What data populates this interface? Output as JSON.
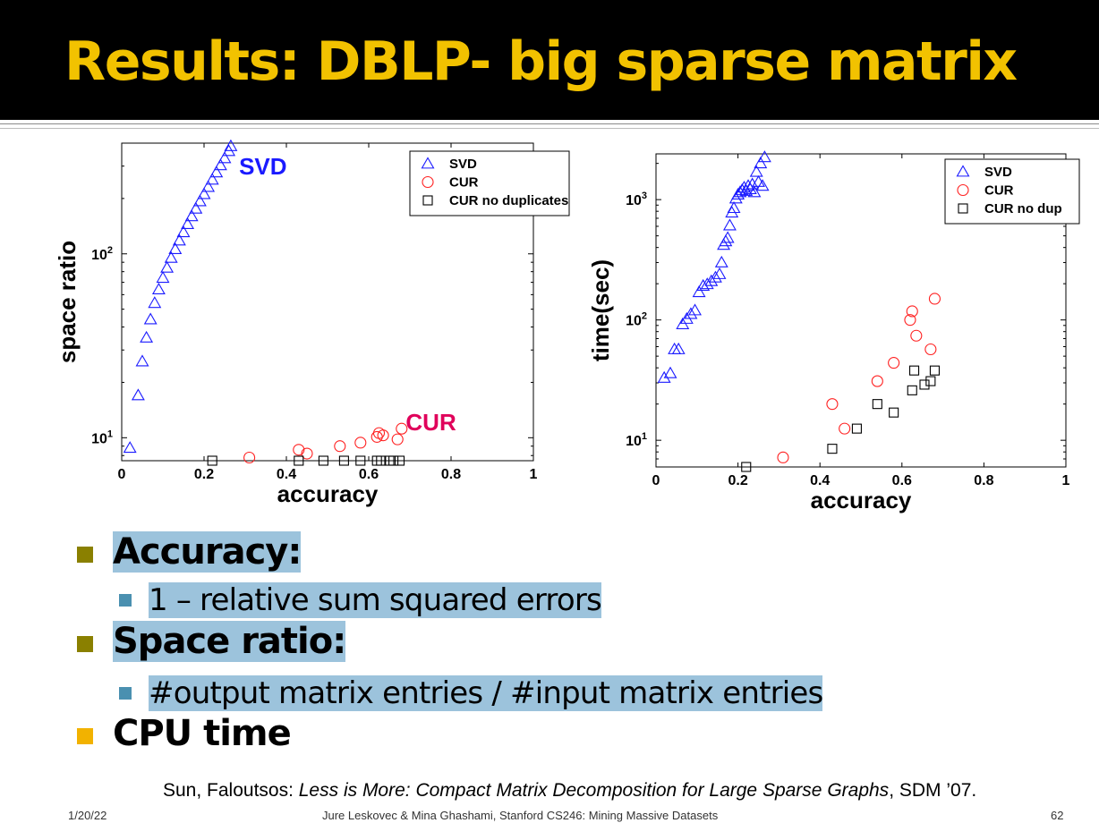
{
  "slide": {
    "title": "Results: DBLP- big sparse matrix",
    "bullets": [
      {
        "text": "Accuracy:",
        "sub": "1 – relative sum squared errors",
        "square_color": "#8a8000"
      },
      {
        "text": "Space ratio:",
        "sub": "#output matrix entries / #input matrix entries",
        "square_color": "#8a8000"
      },
      {
        "text": "CPU time",
        "square_color": "#f2b200"
      }
    ],
    "citation": {
      "authors": "Sun, Faloutsos: ",
      "title": "Less is More: Compact Matrix Decomposition for Large Sparse Graphs",
      "venue": ", SDM ’07."
    },
    "footer": {
      "date": "1/20/22",
      "credit": "Jure Leskovec & Mina Ghashami, Stanford CS246: Mining Massive Datasets",
      "page": "62"
    }
  },
  "chart_data": [
    {
      "type": "scatter",
      "xlabel": "accuracy",
      "ylabel": "space ratio",
      "xlim": [
        0,
        1
      ],
      "ylim": [
        7.5,
        400
      ],
      "yscale": "log",
      "xticks": [
        "0",
        "0.2",
        "0.4",
        "0.6",
        "0.8",
        "1"
      ],
      "yticks": [
        {
          "base": "10",
          "exp": "1",
          "value": 10
        },
        {
          "base": "10",
          "exp": "2",
          "value": 100
        }
      ],
      "legend_position": "top-right",
      "annotations": [
        {
          "text": "SVD",
          "color": "#1a1aff",
          "x": 0.285,
          "y": 270
        },
        {
          "text": "CUR",
          "color": "#e0005a",
          "x": 0.69,
          "y": 11.0
        }
      ],
      "series": [
        {
          "name": "SVD",
          "marker": "triangle",
          "color": "#1a1aff",
          "x": [
            0.02,
            0.04,
            0.05,
            0.06,
            0.07,
            0.08,
            0.09,
            0.1,
            0.11,
            0.12,
            0.13,
            0.14,
            0.15,
            0.16,
            0.17,
            0.18,
            0.19,
            0.2,
            0.21,
            0.22,
            0.23,
            0.24,
            0.25,
            0.26,
            0.265
          ],
          "y": [
            8.8,
            17,
            26,
            35,
            44,
            54,
            64,
            74,
            84,
            95,
            106,
            118,
            131,
            145,
            160,
            176,
            193,
            211,
            231,
            253,
            277,
            303,
            331,
            362,
            385
          ]
        },
        {
          "name": "CUR",
          "marker": "circle",
          "color": "#ff2020",
          "x": [
            0.31,
            0.43,
            0.45,
            0.53,
            0.58,
            0.62,
            0.625,
            0.635,
            0.67,
            0.68
          ],
          "y": [
            7.8,
            8.6,
            8.2,
            9.0,
            9.4,
            10.1,
            10.6,
            10.3,
            9.8,
            11.2
          ]
        },
        {
          "name": "CUR no duplicates",
          "marker": "square",
          "color": "#000000",
          "x": [
            0.22,
            0.43,
            0.49,
            0.54,
            0.58,
            0.62,
            0.63,
            0.65,
            0.66,
            0.675
          ],
          "y": [
            7.5,
            7.5,
            7.5,
            7.5,
            7.5,
            7.5,
            7.5,
            7.5,
            7.5,
            7.5
          ]
        }
      ]
    },
    {
      "type": "scatter",
      "xlabel": "accuracy",
      "ylabel": "time(sec)",
      "xlim": [
        0,
        1
      ],
      "ylim": [
        6,
        2400
      ],
      "yscale": "log",
      "xticks": [
        "0",
        "0.2",
        "0.4",
        "0.6",
        "0.8",
        "1"
      ],
      "yticks": [
        {
          "base": "10",
          "exp": "1",
          "value": 10
        },
        {
          "base": "10",
          "exp": "2",
          "value": 100
        },
        {
          "base": "10",
          "exp": "3",
          "value": 1000
        }
      ],
      "legend_position": "top-right",
      "series": [
        {
          "name": "SVD",
          "marker": "triangle",
          "color": "#1a1aff",
          "x": [
            0.02,
            0.035,
            0.045,
            0.055,
            0.065,
            0.075,
            0.085,
            0.095,
            0.105,
            0.115,
            0.125,
            0.135,
            0.145,
            0.155,
            0.16,
            0.165,
            0.17,
            0.175,
            0.18,
            0.185,
            0.19,
            0.195,
            0.2,
            0.205,
            0.21,
            0.215,
            0.22,
            0.225,
            0.23,
            0.235,
            0.24,
            0.245,
            0.25,
            0.255,
            0.26,
            0.265
          ],
          "y": [
            33,
            36,
            57,
            57,
            92,
            102,
            112,
            120,
            170,
            192,
            198,
            210,
            225,
            240,
            300,
            420,
            450,
            480,
            610,
            780,
            850,
            1020,
            1100,
            1150,
            1200,
            1260,
            1180,
            1300,
            1220,
            1340,
            1150,
            1700,
            1400,
            2000,
            1300,
            2250
          ]
        },
        {
          "name": "CUR",
          "marker": "circle",
          "color": "#ff2020",
          "x": [
            0.31,
            0.43,
            0.46,
            0.54,
            0.58,
            0.62,
            0.625,
            0.635,
            0.67,
            0.68
          ],
          "y": [
            7.2,
            20,
            12.5,
            31,
            44,
            100,
            118,
            74,
            57,
            150
          ]
        },
        {
          "name": "CUR no dup",
          "marker": "square",
          "color": "#000000",
          "x": [
            0.22,
            0.43,
            0.49,
            0.54,
            0.58,
            0.625,
            0.63,
            0.655,
            0.67,
            0.68
          ],
          "y": [
            5.9,
            8.5,
            12.5,
            20,
            17,
            26,
            38,
            29,
            31,
            38
          ]
        }
      ]
    }
  ]
}
